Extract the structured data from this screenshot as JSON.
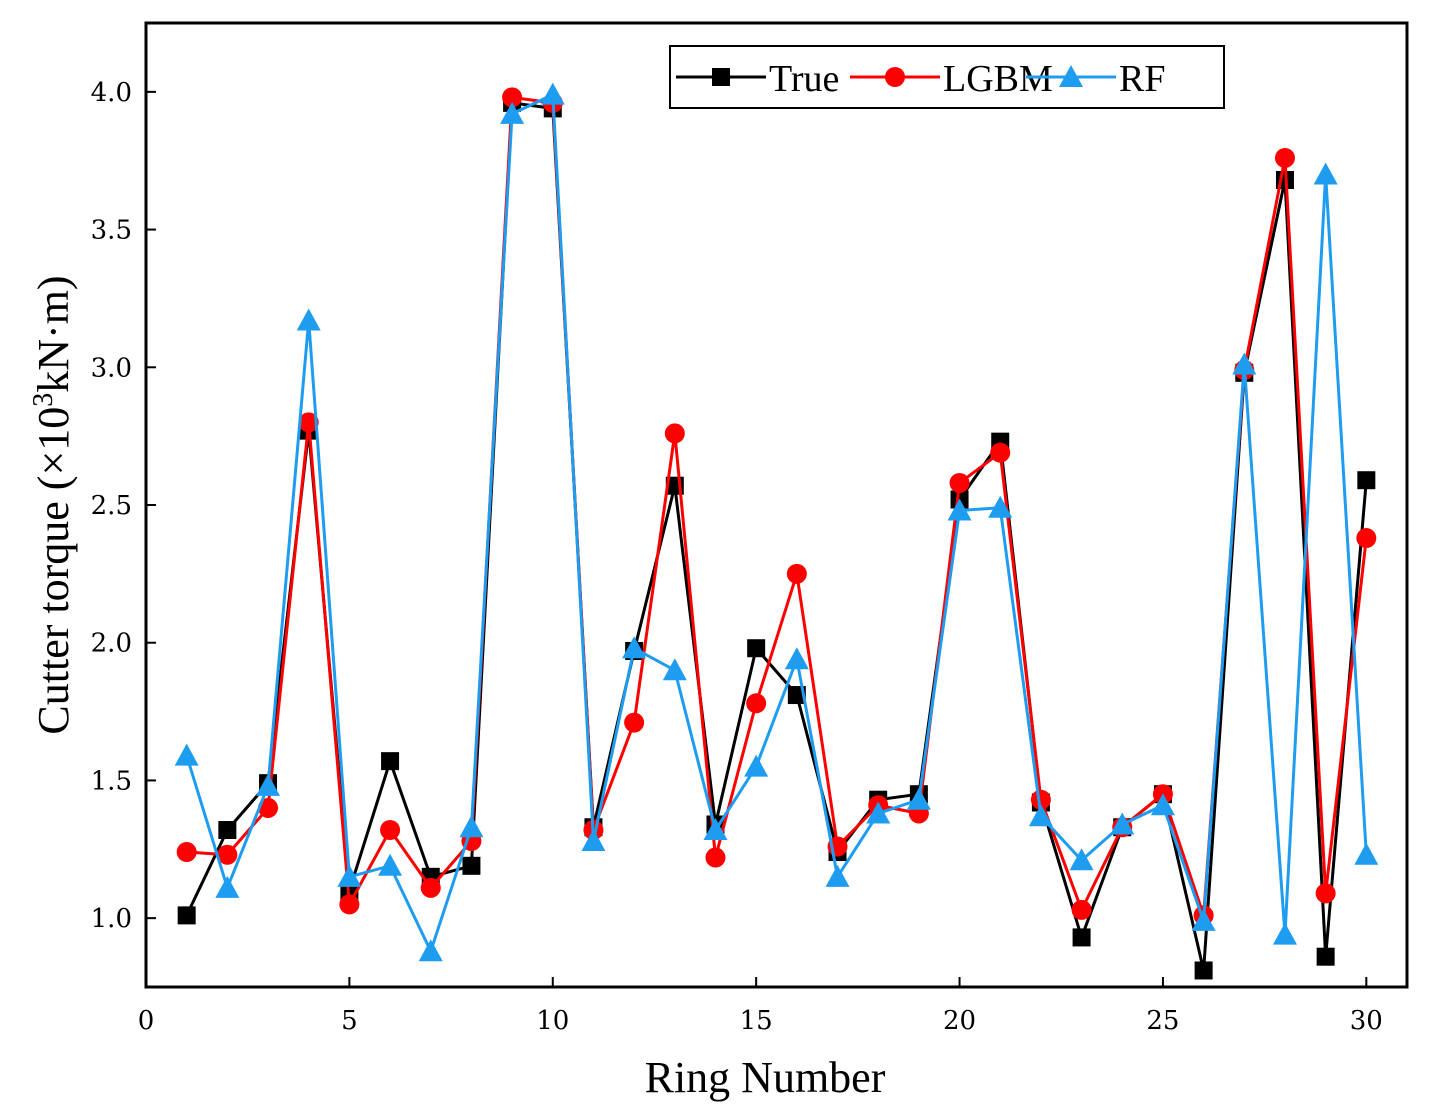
{
  "chart_data": {
    "type": "line",
    "title": "",
    "xlabel": "Ring Number",
    "ylabel": "Cutter torque (×10",
    "ylabel_sup": "3",
    "ylabel_unit": "kN·m)",
    "xlim": [
      0,
      31
    ],
    "ylim": [
      0.75,
      4.25
    ],
    "xticks": [
      0,
      5,
      10,
      15,
      20,
      25,
      30
    ],
    "xtick_labels": [
      "0",
      "5",
      "10",
      "15",
      "20",
      "25",
      "30"
    ],
    "yticks": [
      1.0,
      1.5,
      2.0,
      2.5,
      3.0,
      3.5,
      4.0
    ],
    "ytick_labels": [
      "1.0",
      "1.5",
      "2.0",
      "2.5",
      "3.0",
      "3.5",
      "4.0"
    ],
    "grid": false,
    "legend_position": "top-right",
    "x": [
      1,
      2,
      3,
      4,
      5,
      6,
      7,
      8,
      9,
      10,
      11,
      12,
      13,
      14,
      15,
      16,
      17,
      18,
      19,
      20,
      21,
      22,
      23,
      24,
      25,
      26,
      27,
      28,
      29,
      30
    ],
    "series": [
      {
        "name": "True",
        "color": "#000000",
        "marker": "square",
        "values": [
          1.01,
          1.32,
          1.49,
          2.77,
          1.1,
          1.57,
          1.15,
          1.19,
          3.96,
          3.94,
          1.33,
          1.97,
          2.57,
          1.34,
          1.98,
          1.81,
          1.24,
          1.43,
          1.45,
          2.52,
          2.73,
          1.42,
          0.93,
          1.33,
          1.45,
          0.81,
          2.98,
          3.68,
          0.86,
          2.59
        ]
      },
      {
        "name": "LGBM",
        "color": "#ff0000",
        "marker": "circle",
        "values": [
          1.24,
          1.23,
          1.4,
          2.8,
          1.05,
          1.32,
          1.11,
          1.28,
          3.98,
          3.96,
          1.32,
          1.71,
          2.76,
          1.22,
          1.78,
          2.25,
          1.26,
          1.41,
          1.38,
          2.58,
          2.69,
          1.43,
          1.03,
          1.33,
          1.45,
          1.01,
          2.99,
          3.76,
          1.09,
          2.38
        ]
      },
      {
        "name": "RF",
        "color": "#1e9df0",
        "marker": "triangle",
        "values": [
          1.59,
          1.11,
          1.48,
          3.17,
          1.15,
          1.19,
          0.88,
          1.33,
          3.92,
          3.99,
          1.28,
          1.98,
          1.9,
          1.32,
          1.55,
          1.94,
          1.15,
          1.38,
          1.43,
          2.48,
          2.49,
          1.37,
          1.21,
          1.34,
          1.41,
          0.99,
          3.01,
          0.94,
          3.7,
          1.23
        ]
      }
    ]
  }
}
